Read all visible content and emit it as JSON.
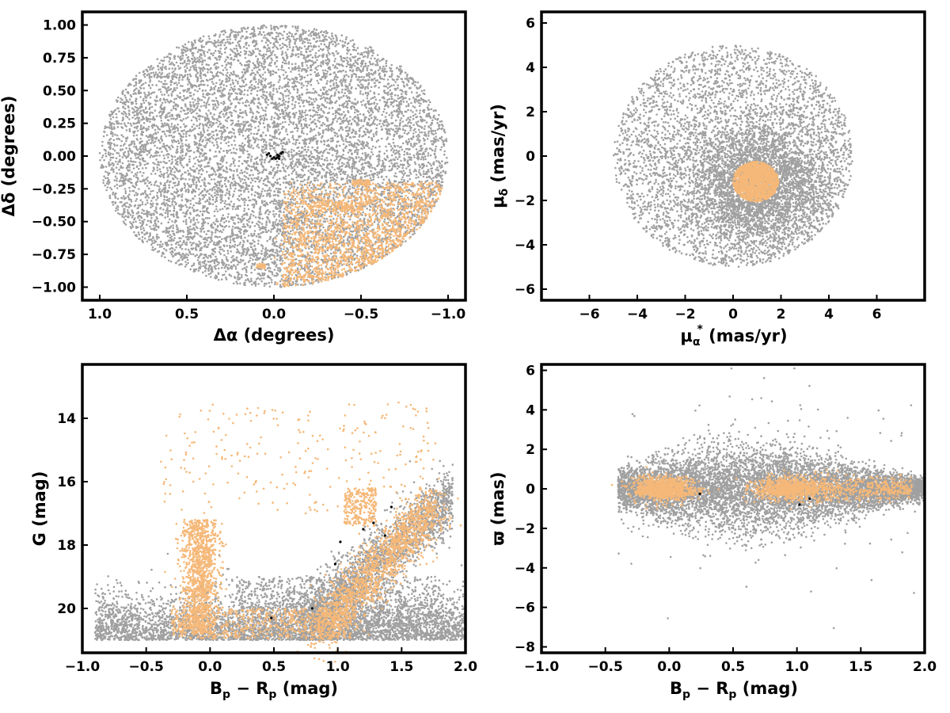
{
  "colors": {
    "field": "#a0a0a0",
    "member": "#f5b878",
    "member_dark": "#d9905a",
    "core": "#000000"
  },
  "chart_data": [
    {
      "id": "spatial",
      "type": "scatter",
      "xlabel": "Δα (degrees)",
      "ylabel": "Δδ (degrees)",
      "xlim": [
        1.1,
        -1.1
      ],
      "ylim": [
        -1.1,
        1.1
      ],
      "xticks": [
        "1.0",
        "0.5",
        "0.0",
        "−0.5",
        "−1.0"
      ],
      "xtick_values": [
        1.0,
        0.5,
        0.0,
        -0.5,
        -1.0
      ],
      "yticks": [
        "1.00",
        "0.75",
        "0.50",
        "0.25",
        "0.00",
        "−0.25",
        "−0.50",
        "−0.75",
        "−1.00"
      ],
      "ytick_values": [
        1.0,
        0.75,
        0.5,
        0.25,
        0.0,
        -0.25,
        -0.5,
        -0.75,
        -1.0
      ],
      "series": [
        {
          "role": "field",
          "color": "#a0a0a0",
          "distribution": "uniform disk of radius 1.0 deg centred at (0,0)"
        },
        {
          "role": "member",
          "color": "#f5b878",
          "distribution": "concentrated in lower-right region, Δα 0 to −0.95, Δδ −0.2 to −1.0"
        },
        {
          "role": "core",
          "color": "#000000",
          "points": [
            [
              0.03,
              0.02
            ],
            [
              0.02,
              0.0
            ],
            [
              0.0,
              -0.01
            ],
            [
              -0.01,
              -0.02
            ],
            [
              -0.02,
              0.01
            ],
            [
              -0.03,
              0.0
            ],
            [
              -0.04,
              0.02
            ],
            [
              -0.05,
              0.03
            ],
            [
              0.01,
              -0.02
            ],
            [
              -0.02,
              -0.01
            ],
            [
              0.04,
              0.01
            ],
            [
              -0.03,
              -0.02
            ]
          ]
        }
      ]
    },
    {
      "id": "proper-motion",
      "type": "scatter",
      "xlabel_main": "μ",
      "xlabel_sub": "α",
      "xlabel_sup": "*",
      "xlabel_rest": " (mas/yr)",
      "ylabel_main": "μ",
      "ylabel_sub": "δ",
      "ylabel_rest": " (mas/yr)",
      "xlim": [
        -8,
        8
      ],
      "ylim": [
        -6.5,
        6.5
      ],
      "xticks": [
        "−6",
        "−4",
        "−2",
        "0",
        "2",
        "4",
        "6"
      ],
      "xtick_values": [
        -6,
        -4,
        -2,
        0,
        2,
        4,
        6
      ],
      "yticks": [
        "6",
        "4",
        "2",
        "0",
        "−2",
        "−4",
        "−6"
      ],
      "ytick_values": [
        6,
        4,
        2,
        0,
        -2,
        -4,
        -6
      ],
      "series": [
        {
          "role": "field",
          "color": "#a0a0a0",
          "distribution": "disk of radius ~5 mas/yr centred near (0,0), denser toward (1,-1)"
        },
        {
          "role": "member",
          "color": "#f5b878",
          "distribution": "compact clump centred at (0.9, -1.2), radius ~0.9 mas/yr"
        }
      ]
    },
    {
      "id": "cmd",
      "type": "scatter",
      "xlabel_main": "B",
      "xlabel_sub1": "p",
      "xlabel_mid": " − R",
      "xlabel_sub2": "p",
      "xlabel_rest": " (mag)",
      "ylabel": "G (mag)",
      "xlim": [
        -1.0,
        2.0
      ],
      "ylim": [
        21.4,
        12.3
      ],
      "xticks": [
        "−1.0",
        "−0.5",
        "0.0",
        "0.5",
        "1.0",
        "1.5",
        "2.0"
      ],
      "xtick_values": [
        -1.0,
        -0.5,
        0.0,
        0.5,
        1.0,
        1.5,
        2.0
      ],
      "yticks": [
        "20",
        "18",
        "16",
        "14"
      ],
      "ytick_values": [
        20,
        18,
        16,
        14
      ],
      "series": [
        {
          "role": "field",
          "color": "#a0a0a0",
          "distribution": "dense faint band G 18–21 across colour −0.9 to 2.0, main-sequence diagonal"
        },
        {
          "role": "member",
          "color": "#f5b878",
          "distribution": "blue plume near colour −0.1 (G 17–20.5), red branch colour 0.8–1.8 (G 16–20.5), sparse bright stars"
        },
        {
          "role": "core",
          "color": "#000000",
          "points": [
            [
              0.48,
              20.3
            ],
            [
              0.8,
              20.0
            ],
            [
              0.98,
              18.6
            ],
            [
              1.02,
              17.9
            ],
            [
              1.2,
              17.5
            ],
            [
              1.28,
              17.3
            ],
            [
              1.37,
              17.7
            ],
            [
              1.42,
              16.8
            ]
          ]
        }
      ]
    },
    {
      "id": "parallax",
      "type": "scatter",
      "xlabel_main": "B",
      "xlabel_sub1": "p",
      "xlabel_mid": " − R",
      "xlabel_sub2": "p",
      "xlabel_rest": " (mag)",
      "ylabel": "ϖ (mas)",
      "xlim": [
        -1.0,
        2.0
      ],
      "ylim": [
        -8.3,
        6.3
      ],
      "xticks": [
        "−1.0",
        "−0.5",
        "0.0",
        "0.5",
        "1.0",
        "1.5",
        "2.0"
      ],
      "xtick_values": [
        -1.0,
        -0.5,
        0.0,
        0.5,
        1.0,
        1.5,
        2.0
      ],
      "yticks": [
        "6",
        "4",
        "2",
        "0",
        "−2",
        "−4",
        "−6",
        "−8"
      ],
      "ytick_values": [
        6,
        4,
        2,
        0,
        -2,
        -4,
        -6,
        -8
      ],
      "series": [
        {
          "role": "field",
          "color": "#a0a0a0",
          "distribution": "band centred at ϖ=0, spread ±2 mas over colour −0.3 to 1.9"
        },
        {
          "role": "member",
          "color": "#f5b878",
          "distribution": "narrow band centred at ϖ=0, spread ±0.6 mas"
        },
        {
          "role": "core",
          "color": "#000000",
          "points": [
            [
              0.24,
              -0.25
            ],
            [
              1.02,
              -0.8
            ],
            [
              1.1,
              -0.5
            ]
          ]
        }
      ]
    }
  ]
}
